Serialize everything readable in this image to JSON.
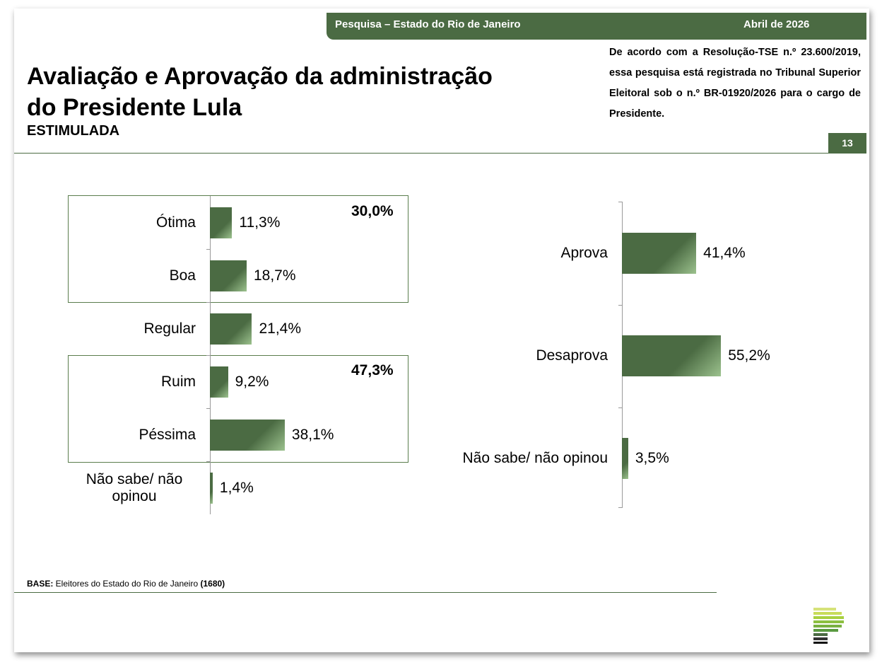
{
  "header": {
    "survey": "Pesquisa – Estado do Rio de Janeiro",
    "date": "Abril de 2026"
  },
  "title": {
    "line1": "Avaliação e Aprovação da administração",
    "line2": "do Presidente Lula",
    "subtitle": "ESTIMULADA"
  },
  "registration": "De acordo com a Resolução-TSE n.º 23.600/2019, essa pesquisa está registrada no Tribunal Superior Eleitoral sob o n.º BR-01920/2026 para o cargo de Presidente.",
  "page_number": "13",
  "base": {
    "label": "BASE:",
    "text": " Eleitores do Estado do Rio de Janeiro ",
    "n": "(1680)"
  },
  "colors": {
    "brand": "#4b6b43"
  },
  "chart_data": [
    {
      "type": "bar",
      "orientation": "horizontal",
      "categories": [
        "Ótima",
        "Boa",
        "Regular",
        "Ruim",
        "Péssima",
        "Não sabe/ não opinou"
      ],
      "values": [
        11.3,
        18.7,
        21.4,
        9.2,
        38.1,
        1.4
      ],
      "labels": [
        "11,3%",
        "18,7%",
        "21,4%",
        "9,2%",
        "38,1%",
        "1,4%"
      ],
      "groups": [
        {
          "members": [
            "Ótima",
            "Boa"
          ],
          "total": "30,0%"
        },
        {
          "members": [
            "Ruim",
            "Péssima"
          ],
          "total": "47,3%"
        }
      ]
    },
    {
      "type": "bar",
      "orientation": "horizontal",
      "categories": [
        "Aprova",
        "Desaprova",
        "Não sabe/ não opinou"
      ],
      "values": [
        41.4,
        55.2,
        3.5
      ],
      "labels": [
        "41,4%",
        "55,2%",
        "3,5%"
      ]
    }
  ]
}
